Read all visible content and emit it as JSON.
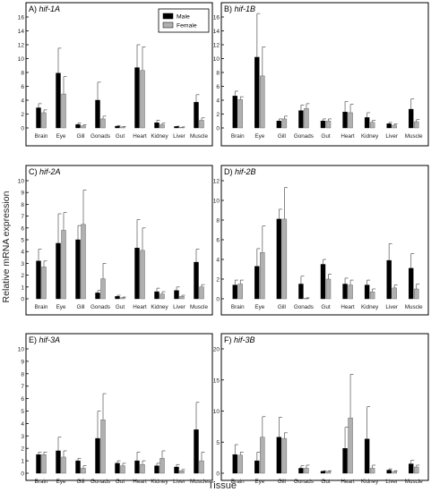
{
  "figure": {
    "ylabel": "Relative mRNA expression",
    "xlabel": "Tissue",
    "legend": {
      "placement": "top-right of panel A",
      "entries": [
        "Male",
        "Female"
      ]
    },
    "colors": {
      "male": "#000000",
      "female": "#b0b0b0"
    }
  },
  "chart_data": [
    {
      "type": "bar",
      "panel": "A",
      "title_prefix": "A)",
      "title_gene": "hif-1A",
      "categories": [
        "Brain",
        "Eye",
        "Gill",
        "Gonads",
        "Gut",
        "Heart",
        "Kidney",
        "Liver",
        "Muscle"
      ],
      "ylim": [
        0,
        16
      ],
      "yticks": [
        0,
        2,
        4,
        6,
        8,
        10,
        12,
        14,
        16
      ],
      "series": [
        {
          "name": "Male",
          "values": [
            2.9,
            7.9,
            0.5,
            4.0,
            0.25,
            8.7,
            0.75,
            0.2,
            3.7
          ],
          "err": [
            0.6,
            3.6,
            0.2,
            2.6,
            0.1,
            3.3,
            0.35,
            0.05,
            1.1
          ]
        },
        {
          "name": "Female",
          "values": [
            2.2,
            4.9,
            0.3,
            1.3,
            0.15,
            8.3,
            0.5,
            0.1,
            1.1
          ],
          "err": [
            0.4,
            2.5,
            0.15,
            0.4,
            0.05,
            3.4,
            0.2,
            0.05,
            0.35
          ]
        }
      ]
    },
    {
      "type": "bar",
      "panel": "B",
      "title_prefix": "B)",
      "title_gene": "hif-1B",
      "categories": [
        "Brain",
        "Eye",
        "Gill",
        "Gonads",
        "Gut",
        "Heart",
        "Kidney",
        "Liver",
        "Muscle"
      ],
      "ylim": [
        0,
        16
      ],
      "yticks": [
        0,
        2,
        4,
        6,
        8,
        10,
        12,
        14,
        16
      ],
      "series": [
        {
          "name": "Male",
          "values": [
            4.6,
            10.2,
            1.0,
            2.5,
            1.0,
            2.3,
            1.5,
            0.6,
            2.7
          ],
          "err": [
            0.7,
            6.3,
            0.3,
            0.8,
            0.3,
            1.5,
            0.7,
            0.2,
            1.5
          ]
        },
        {
          "name": "Female",
          "values": [
            4.1,
            7.5,
            1.3,
            2.8,
            1.0,
            2.2,
            0.8,
            0.4,
            0.9
          ],
          "err": [
            0.4,
            4.2,
            0.4,
            0.7,
            0.3,
            1.2,
            0.3,
            0.2,
            0.3
          ]
        }
      ]
    },
    {
      "type": "bar",
      "panel": "C",
      "title_prefix": "C)",
      "title_gene": "hif-2A",
      "categories": [
        "Brain",
        "Eye",
        "Gill",
        "Gonads",
        "Gut",
        "Heart",
        "Kidney",
        "Liver",
        "Muscle"
      ],
      "ylim": [
        0,
        10
      ],
      "yticks": [
        0,
        1,
        2,
        3,
        4,
        5,
        6,
        7,
        8,
        9,
        10
      ],
      "series": [
        {
          "name": "Male",
          "values": [
            3.2,
            4.7,
            5.0,
            0.5,
            0.2,
            4.3,
            0.6,
            0.7,
            3.1
          ],
          "err": [
            1.0,
            2.5,
            1.2,
            0.2,
            0.1,
            2.4,
            0.3,
            0.3,
            1.1
          ]
        },
        {
          "name": "Female",
          "values": [
            2.7,
            5.8,
            6.3,
            1.7,
            0.1,
            4.1,
            0.4,
            0.2,
            1.0
          ],
          "err": [
            0.5,
            1.5,
            2.9,
            1.3,
            0.05,
            1.9,
            0.2,
            0.1,
            0.2
          ]
        }
      ]
    },
    {
      "type": "bar",
      "panel": "D",
      "title_prefix": "D)",
      "title_gene": "hif-2B",
      "categories": [
        "Brain",
        "Eye",
        "Gill",
        "Gonads",
        "Gut",
        "Heart",
        "Kidney",
        "Liver",
        "Muscle"
      ],
      "ylim": [
        0,
        12
      ],
      "yticks": [
        0,
        2,
        4,
        6,
        8,
        10,
        12
      ],
      "series": [
        {
          "name": "Male",
          "values": [
            1.4,
            3.3,
            8.1,
            1.5,
            3.5,
            1.5,
            1.4,
            3.9,
            3.1
          ],
          "err": [
            0.5,
            1.8,
            1.0,
            0.8,
            0.5,
            0.6,
            0.5,
            1.7,
            1.5
          ]
        },
        {
          "name": "Female",
          "values": [
            1.5,
            4.7,
            8.1,
            0.05,
            2.0,
            1.4,
            0.7,
            1.1,
            1.0
          ],
          "err": [
            0.4,
            2.7,
            3.2,
            0.05,
            0.5,
            0.5,
            0.3,
            0.3,
            0.5
          ]
        }
      ]
    },
    {
      "type": "bar",
      "panel": "E",
      "title_prefix": "E)",
      "title_gene": "hif-3A",
      "categories": [
        "Brain",
        "Eye",
        "Gill",
        "Gonads",
        "Gut",
        "Heart",
        "Kidney",
        "Liver",
        "Muscle"
      ],
      "ylim": [
        0,
        10
      ],
      "yticks": [
        0,
        1,
        2,
        3,
        4,
        5,
        6,
        7,
        8,
        9,
        10
      ],
      "series": [
        {
          "name": "Male",
          "values": [
            1.5,
            1.8,
            1.0,
            2.8,
            0.8,
            1.0,
            0.6,
            0.5,
            3.5
          ],
          "err": [
            0.2,
            1.1,
            0.2,
            2.2,
            0.2,
            0.7,
            0.2,
            0.2,
            2.2
          ]
        },
        {
          "name": "Female",
          "values": [
            1.5,
            1.3,
            0.4,
            4.3,
            0.6,
            0.7,
            1.2,
            0.2,
            1.0
          ],
          "err": [
            0.2,
            0.5,
            0.2,
            2.1,
            0.2,
            0.3,
            0.6,
            0.1,
            0.7
          ]
        }
      ]
    },
    {
      "type": "bar",
      "panel": "F",
      "title_prefix": "F)",
      "title_gene": "hif-3B",
      "categories": [
        "Brain",
        "Eye",
        "Gill",
        "Gonads",
        "Gut",
        "Heart",
        "Kidney",
        "Liver",
        "Muscle"
      ],
      "ylim": [
        0,
        20
      ],
      "yticks": [
        0,
        5,
        10,
        15,
        20
      ],
      "series": [
        {
          "name": "Male",
          "values": [
            3.0,
            2.0,
            5.8,
            0.8,
            0.3,
            4.0,
            5.5,
            0.5,
            1.5
          ],
          "err": [
            1.6,
            1.4,
            3.2,
            0.4,
            0.1,
            3.4,
            5.2,
            0.2,
            0.6
          ]
        },
        {
          "name": "Female",
          "values": [
            2.9,
            5.8,
            5.6,
            0.8,
            0.3,
            8.9,
            0.8,
            0.3,
            1.0
          ],
          "err": [
            0.5,
            3.3,
            0.9,
            0.5,
            0.1,
            7.0,
            0.5,
            0.1,
            0.3
          ]
        }
      ]
    }
  ]
}
